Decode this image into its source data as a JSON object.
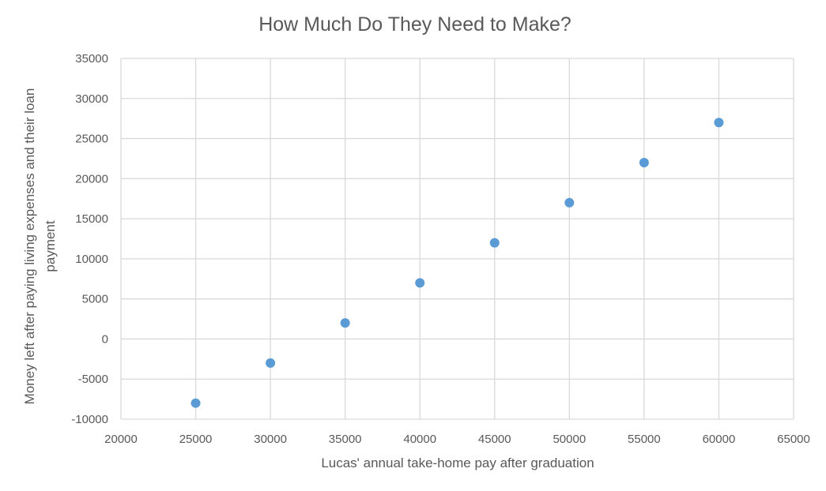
{
  "chart_data": {
    "type": "scatter",
    "title": "How Much Do They Need to Make?",
    "xlabel": "Lucas' annual take-home pay after graduation",
    "ylabel_lines": [
      "Money left after paying living expenses and their loan",
      "payment"
    ],
    "xlim": [
      20000,
      65000
    ],
    "ylim": [
      -10000,
      35000
    ],
    "x_ticks": [
      20000,
      25000,
      30000,
      35000,
      40000,
      45000,
      50000,
      55000,
      60000,
      65000
    ],
    "y_ticks": [
      -10000,
      -5000,
      0,
      5000,
      10000,
      15000,
      20000,
      25000,
      30000,
      35000
    ],
    "grid": true,
    "series": [
      {
        "color": "#5b9bd5",
        "points": [
          {
            "x": 25000,
            "y": -8000
          },
          {
            "x": 30000,
            "y": -3000
          },
          {
            "x": 35000,
            "y": 2000
          },
          {
            "x": 40000,
            "y": 7000
          },
          {
            "x": 45000,
            "y": 12000
          },
          {
            "x": 50000,
            "y": 17000
          },
          {
            "x": 55000,
            "y": 22000
          },
          {
            "x": 60000,
            "y": 27000
          }
        ]
      }
    ]
  }
}
